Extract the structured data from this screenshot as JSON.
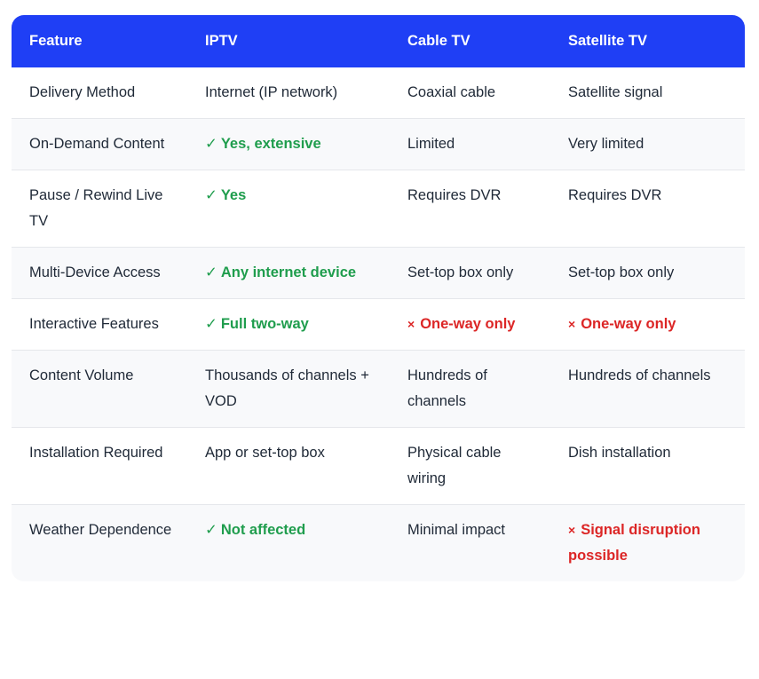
{
  "headers": [
    "Feature",
    "IPTV",
    "Cable TV",
    "Satellite TV"
  ],
  "marks": {
    "check": "✓",
    "cross": "×"
  },
  "colors": {
    "header_bg": "#1f3ff5",
    "positive": "#1f9d4d",
    "negative": "#dc2626",
    "alt_row": "#f8f9fb"
  },
  "rows": [
    {
      "feature": "Delivery Method",
      "iptv": "Internet (IP network)",
      "cable": "Coaxial cable",
      "satellite": "Satellite signal"
    },
    {
      "feature": "On-Demand Content",
      "iptv": "Yes, extensive",
      "cable": "Limited",
      "satellite": "Very limited"
    },
    {
      "feature": "Pause / Rewind Live TV",
      "iptv": "Yes",
      "cable": "Requires DVR",
      "satellite": "Requires DVR"
    },
    {
      "feature": "Multi-Device Access",
      "iptv": "Any internet device",
      "cable": "Set-top box only",
      "satellite": "Set-top box only"
    },
    {
      "feature": "Interactive Features",
      "iptv": "Full two-way",
      "cable": "One-way only",
      "satellite": "One-way only"
    },
    {
      "feature": "Content Volume",
      "iptv": "Thousands of channels + VOD",
      "cable": "Hundreds of channels",
      "satellite": "Hundreds of channels"
    },
    {
      "feature": "Installation Required",
      "iptv": "App or set-top box",
      "cable": "Physical cable wiring",
      "satellite": "Dish installation"
    },
    {
      "feature": "Weather Dependence",
      "iptv": "Not affected",
      "cable": "Minimal impact",
      "satellite": "Signal disruption possible"
    }
  ]
}
